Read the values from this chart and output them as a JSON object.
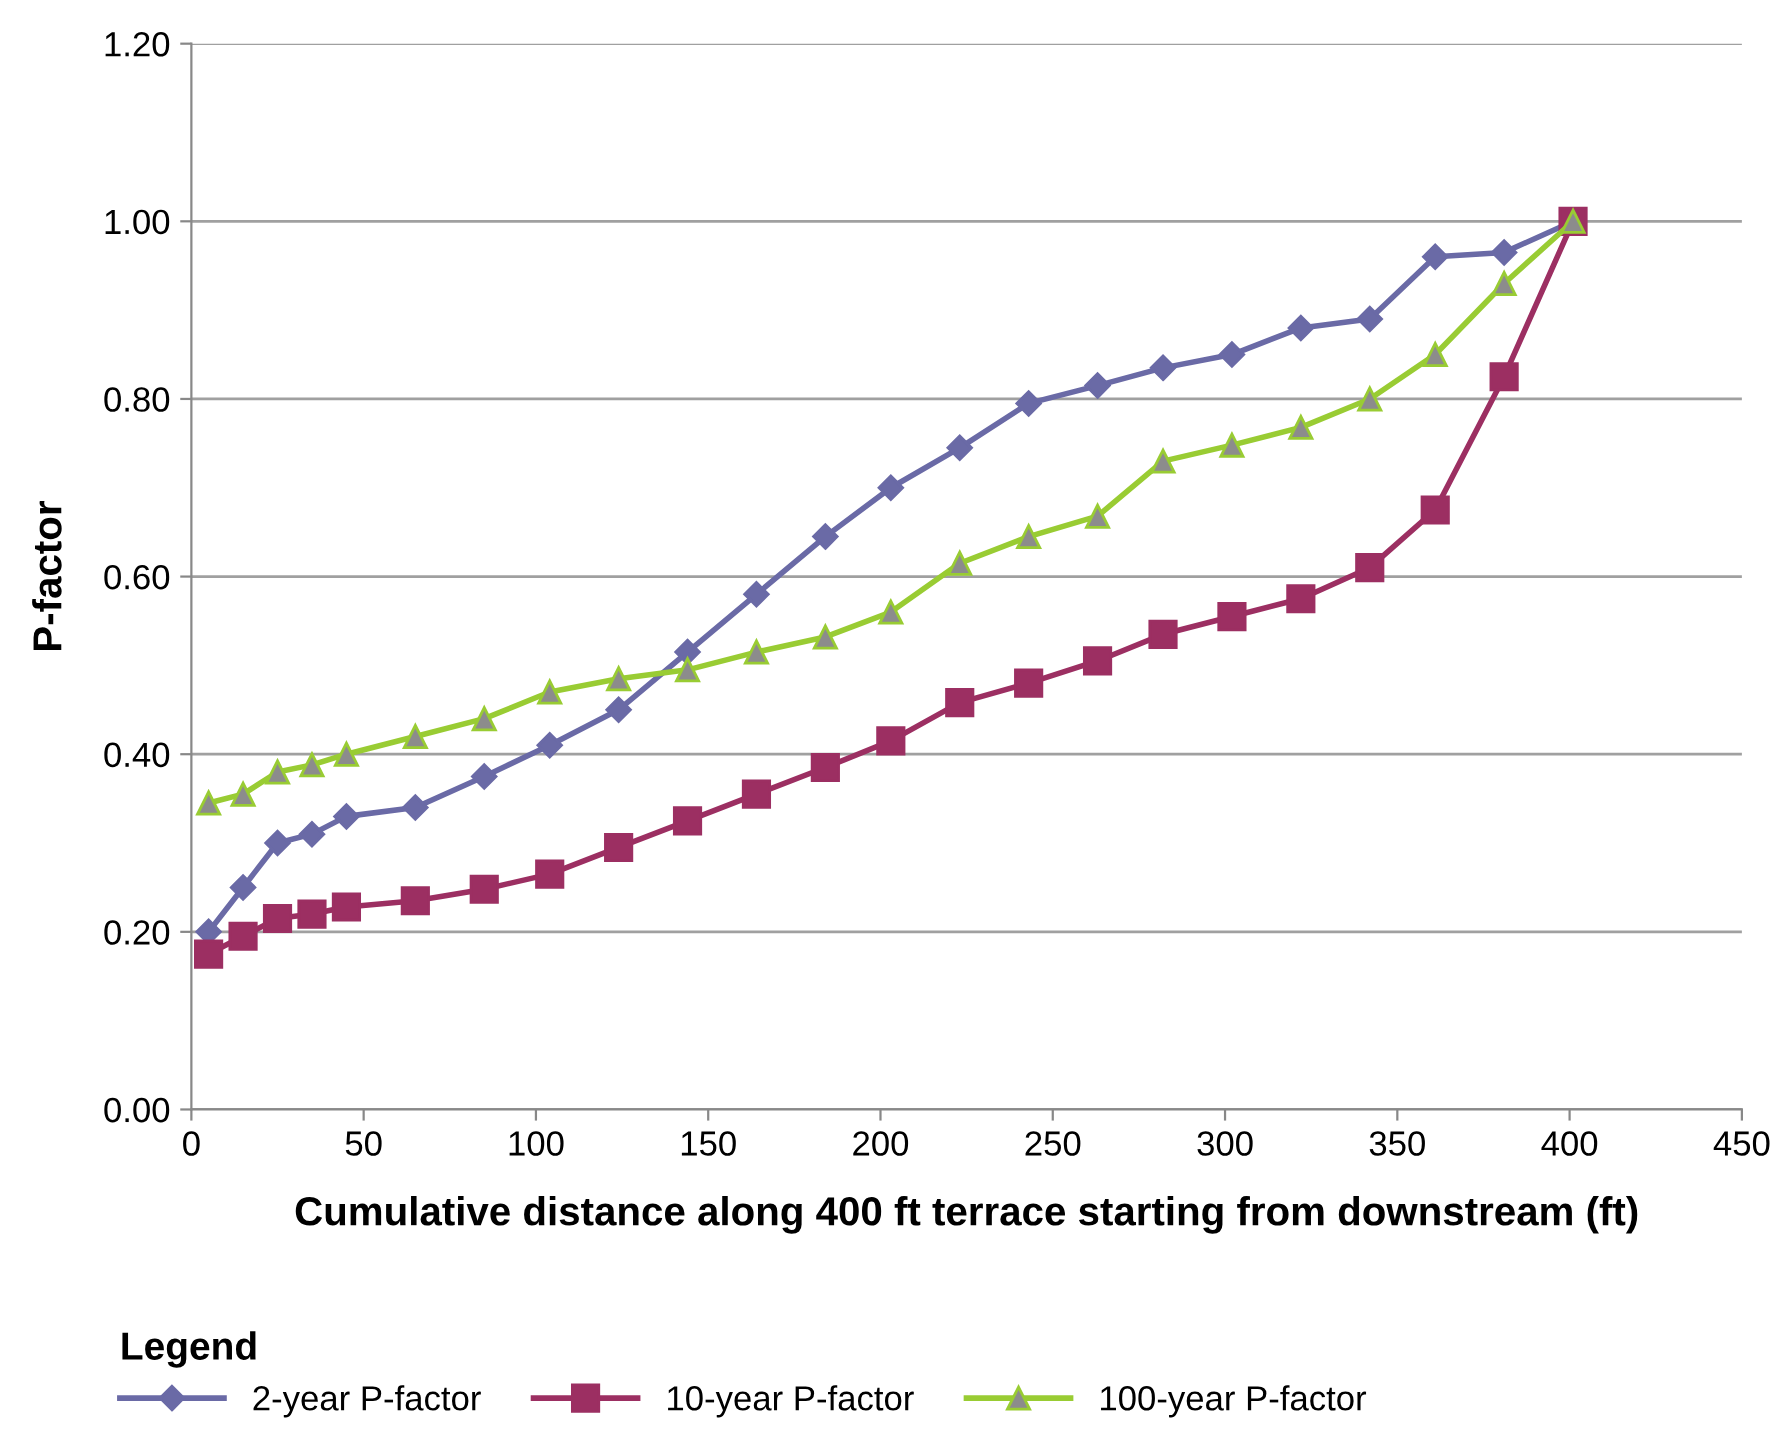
{
  "chart_data": {
    "type": "line",
    "xlabel": "Cumulative distance along 400 ft terrace starting from downstream (ft)",
    "ylabel": "P-factor",
    "legend_title": "Legend",
    "legend": "bottom",
    "grid": "y",
    "line_style": "solid",
    "x": [
      5,
      15,
      25,
      35,
      45,
      65,
      85,
      104,
      124,
      144,
      164,
      184,
      203,
      223,
      243,
      263,
      282,
      302,
      322,
      342,
      361,
      381,
      401
    ],
    "series": [
      {
        "name": "2-year P-factor",
        "color": "#6a6aa6",
        "marker": "diamond",
        "values": [
          0.2,
          0.25,
          0.3,
          0.31,
          0.33,
          0.34,
          0.375,
          0.41,
          0.45,
          0.515,
          0.58,
          0.645,
          0.7,
          0.745,
          0.795,
          0.815,
          0.835,
          0.85,
          0.88,
          0.89,
          0.96,
          0.965,
          1.0
        ]
      },
      {
        "name": "10-year P-factor",
        "color": "#9c2f62",
        "marker": "square",
        "values": [
          0.175,
          0.195,
          0.215,
          0.22,
          0.228,
          0.235,
          0.248,
          0.265,
          0.295,
          0.325,
          0.355,
          0.385,
          0.415,
          0.458,
          0.48,
          0.505,
          0.535,
          0.555,
          0.575,
          0.61,
          0.675,
          0.825,
          1.0
        ]
      },
      {
        "name": "100-year P-factor",
        "color": "#99cc33",
        "marker": "triangle",
        "values": [
          0.345,
          0.355,
          0.38,
          0.388,
          0.4,
          0.42,
          0.44,
          0.47,
          0.485,
          0.495,
          0.515,
          0.532,
          0.56,
          0.615,
          0.645,
          0.668,
          0.73,
          0.748,
          0.768,
          0.8,
          0.85,
          0.93,
          1.0
        ]
      }
    ],
    "xlim": [
      0,
      450
    ],
    "xticks": [
      0,
      50,
      100,
      150,
      200,
      250,
      300,
      350,
      400,
      450
    ],
    "ylim": [
      0,
      1.2
    ],
    "yticks": [
      {
        "value": 0,
        "label": "0.00"
      },
      {
        "value": 0.2,
        "label": "0.20"
      },
      {
        "value": 0.4,
        "label": "0.40"
      },
      {
        "value": 0.6,
        "label": "0.60"
      },
      {
        "value": 0.8,
        "label": "0.80"
      },
      {
        "value": 1.0,
        "label": "1.00"
      },
      {
        "value": 1.2,
        "label": "1.20"
      }
    ]
  }
}
